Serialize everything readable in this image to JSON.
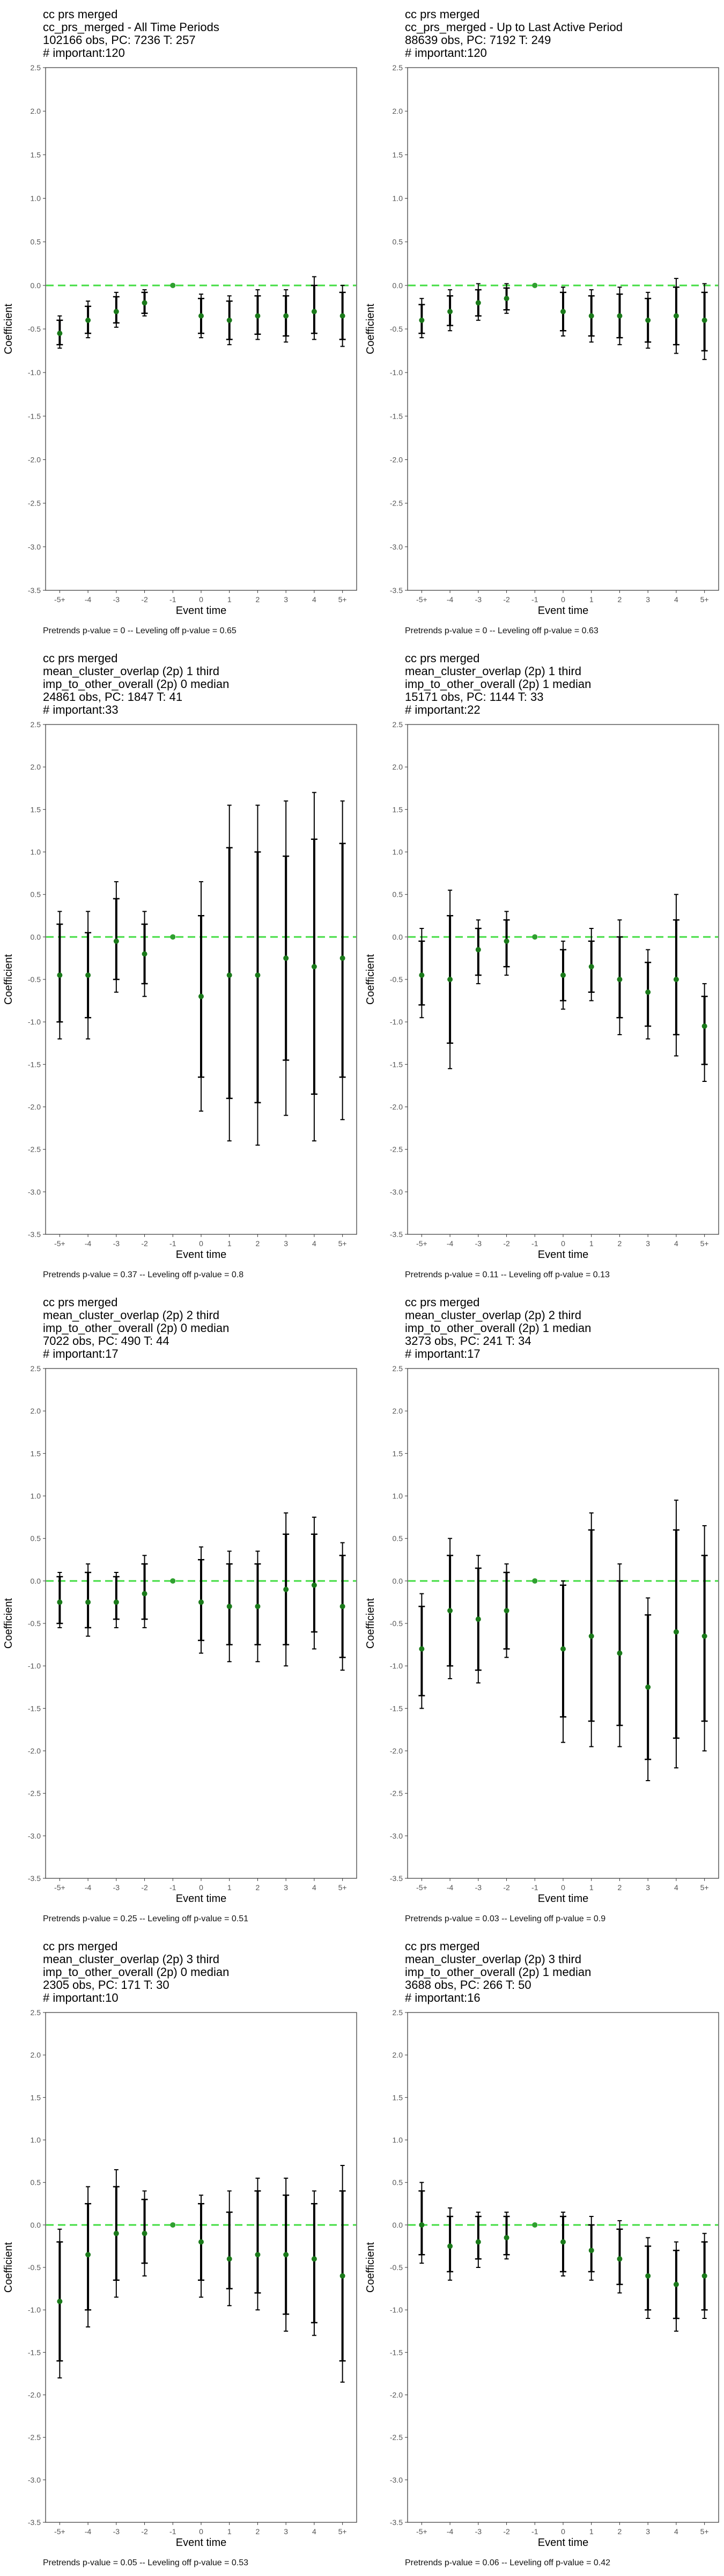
{
  "charts": [
    {
      "title_lines": [
        "cc prs merged",
        "cc_prs_merged - All Time Periods",
        "102166 obs, PC: 7236 T: 257",
        "# important:120"
      ],
      "footer": "Pretrends p-value = 0 -- Leveling off p-value = 0.65"
    },
    {
      "title_lines": [
        "cc prs merged",
        "cc_prs_merged - Up to Last Active Period",
        "88639 obs, PC: 7192 T: 249",
        "# important:120"
      ],
      "footer": "Pretrends p-value = 0 -- Leveling off p-value = 0.63"
    },
    {
      "title_lines": [
        "cc prs merged",
        "mean_cluster_overlap (2p) 1 third",
        "imp_to_other_overall (2p) 0 median",
        "24861 obs, PC: 1847 T: 41",
        "# important:33"
      ],
      "footer": "Pretrends p-value = 0.37 -- Leveling off p-value = 0.8"
    },
    {
      "title_lines": [
        "cc prs merged",
        "mean_cluster_overlap (2p) 1 third",
        "imp_to_other_overall (2p) 1 median",
        "15171 obs, PC: 1144 T: 33",
        "# important:22"
      ],
      "footer": "Pretrends p-value = 0.11 -- Leveling off p-value = 0.13"
    },
    {
      "title_lines": [
        "cc prs merged",
        "mean_cluster_overlap (2p) 2 third",
        "imp_to_other_overall (2p) 0 median",
        "7022 obs, PC: 490 T: 44",
        "# important:17"
      ],
      "footer": "Pretrends p-value = 0.25 -- Leveling off p-value = 0.51"
    },
    {
      "title_lines": [
        "cc prs merged",
        "mean_cluster_overlap (2p) 2 third",
        "imp_to_other_overall (2p) 1 median",
        "3273 obs, PC: 241 T: 34",
        "# important:17"
      ],
      "footer": "Pretrends p-value = 0.03 -- Leveling off p-value = 0.9"
    },
    {
      "title_lines": [
        "cc prs merged",
        "mean_cluster_overlap (2p) 3 third",
        "imp_to_other_overall (2p) 0 median",
        "2305 obs, PC: 171 T: 30",
        "# important:10"
      ],
      "footer": "Pretrends p-value = 0.05 -- Leveling off p-value = 0.53"
    },
    {
      "title_lines": [
        "cc prs merged",
        "mean_cluster_overlap (2p) 3 third",
        "imp_to_other_overall (2p) 1 median",
        "3688 obs, PC: 266 T: 50",
        "# important:16"
      ],
      "footer": "Pretrends p-value = 0.06 -- Leveling off p-value = 0.42"
    }
  ],
  "chart_data": [
    {
      "type": "scatter",
      "xlabel": "Event time",
      "ylabel": "Coefficient",
      "categories": [
        "-5+",
        "-4",
        "-3",
        "-2",
        "-1",
        "0",
        "1",
        "2",
        "3",
        "4",
        "5+"
      ],
      "ylim": [
        -3.5,
        2.5
      ],
      "yticks": [
        "-3.5",
        "-3.0",
        "-2.5",
        "-2.0",
        "-1.5",
        "-1.0",
        "-0.5",
        "0.0",
        "0.5",
        "1.0",
        "1.5",
        "2.0",
        "2.5"
      ],
      "reference_line": 0.0,
      "series": [
        {
          "values": [
            -0.55,
            -0.4,
            -0.3,
            -0.2,
            0.0,
            -0.35,
            -0.4,
            -0.35,
            -0.35,
            -0.3,
            -0.35
          ],
          "ci95_low": [
            -0.72,
            -0.6,
            -0.48,
            -0.35,
            0.0,
            -0.6,
            -0.68,
            -0.62,
            -0.65,
            -0.62,
            -0.7
          ],
          "ci95_high": [
            -0.35,
            -0.18,
            -0.08,
            -0.05,
            0.0,
            -0.1,
            -0.12,
            -0.05,
            -0.05,
            0.1,
            0.0
          ],
          "ci90_low": [
            -0.68,
            -0.55,
            -0.43,
            -0.32,
            0.0,
            -0.55,
            -0.62,
            -0.56,
            -0.58,
            -0.55,
            -0.62
          ],
          "ci90_high": [
            -0.4,
            -0.24,
            -0.13,
            -0.08,
            0.0,
            -0.15,
            -0.18,
            -0.12,
            -0.12,
            0.0,
            -0.08
          ]
        }
      ]
    },
    {
      "type": "scatter",
      "xlabel": "Event time",
      "ylabel": "Coefficient",
      "categories": [
        "-5+",
        "-4",
        "-3",
        "-2",
        "-1",
        "0",
        "1",
        "2",
        "3",
        "4",
        "5+"
      ],
      "ylim": [
        -3.5,
        2.5
      ],
      "yticks": [
        "-3.5",
        "-3.0",
        "-2.5",
        "-2.0",
        "-1.5",
        "-1.0",
        "-0.5",
        "0.0",
        "0.5",
        "1.0",
        "1.5",
        "2.0",
        "2.5"
      ],
      "reference_line": 0.0,
      "series": [
        {
          "values": [
            -0.4,
            -0.3,
            -0.2,
            -0.15,
            0.0,
            -0.3,
            -0.35,
            -0.35,
            -0.4,
            -0.35,
            -0.4
          ],
          "ci95_low": [
            -0.6,
            -0.52,
            -0.4,
            -0.32,
            0.0,
            -0.58,
            -0.65,
            -0.68,
            -0.72,
            -0.78,
            -0.85
          ],
          "ci95_high": [
            -0.15,
            -0.05,
            0.02,
            0.02,
            0.0,
            -0.02,
            -0.05,
            -0.02,
            -0.08,
            0.08,
            0.02
          ],
          "ci90_low": [
            -0.55,
            -0.46,
            -0.35,
            -0.28,
            0.0,
            -0.52,
            -0.58,
            -0.6,
            -0.65,
            -0.68,
            -0.75
          ],
          "ci90_high": [
            -0.22,
            -0.12,
            -0.05,
            -0.03,
            0.0,
            -0.08,
            -0.12,
            -0.1,
            -0.15,
            -0.02,
            -0.08
          ]
        }
      ]
    },
    {
      "type": "scatter",
      "xlabel": "Event time",
      "ylabel": "Coefficient",
      "categories": [
        "-5+",
        "-4",
        "-3",
        "-2",
        "-1",
        "0",
        "1",
        "2",
        "3",
        "4",
        "5+"
      ],
      "ylim": [
        -3.5,
        2.5
      ],
      "yticks": [
        "-3.5",
        "-3.0",
        "-2.5",
        "-2.0",
        "-1.5",
        "-1.0",
        "-0.5",
        "0.0",
        "0.5",
        "1.0",
        "1.5",
        "2.0",
        "2.5"
      ],
      "reference_line": 0.0,
      "series": [
        {
          "values": [
            -0.45,
            -0.45,
            -0.05,
            -0.2,
            0.0,
            -0.7,
            -0.45,
            -0.45,
            -0.25,
            -0.35,
            -0.25
          ],
          "ci95_low": [
            -1.2,
            -1.2,
            -0.65,
            -0.7,
            0.0,
            -2.05,
            -2.4,
            -2.45,
            -2.1,
            -2.4,
            -2.15
          ],
          "ci95_high": [
            0.3,
            0.3,
            0.65,
            0.3,
            0.0,
            0.65,
            1.55,
            1.55,
            1.6,
            1.7,
            1.6
          ],
          "ci90_low": [
            -1.0,
            -0.95,
            -0.5,
            -0.55,
            0.0,
            -1.65,
            -1.9,
            -1.95,
            -1.45,
            -1.85,
            -1.65
          ],
          "ci90_high": [
            0.15,
            0.05,
            0.45,
            0.15,
            0.0,
            0.25,
            1.05,
            1.0,
            0.95,
            1.15,
            1.1
          ]
        }
      ]
    },
    {
      "type": "scatter",
      "xlabel": "Event time",
      "ylabel": "Coefficient",
      "categories": [
        "-5+",
        "-4",
        "-3",
        "-2",
        "-1",
        "0",
        "1",
        "2",
        "3",
        "4",
        "5+"
      ],
      "ylim": [
        -3.5,
        2.5
      ],
      "yticks": [
        "-3.5",
        "-3.0",
        "-2.5",
        "-2.0",
        "-1.5",
        "-1.0",
        "-0.5",
        "0.0",
        "0.5",
        "1.0",
        "1.5",
        "2.0",
        "2.5"
      ],
      "reference_line": 0.0,
      "series": [
        {
          "values": [
            -0.45,
            -0.5,
            -0.15,
            -0.05,
            0.0,
            -0.45,
            -0.35,
            -0.5,
            -0.65,
            -0.5,
            -1.05
          ],
          "ci95_low": [
            -0.95,
            -1.55,
            -0.55,
            -0.45,
            0.0,
            -0.85,
            -0.75,
            -1.15,
            -1.2,
            -1.4,
            -1.7
          ],
          "ci95_high": [
            0.1,
            0.55,
            0.2,
            0.3,
            0.0,
            -0.05,
            0.1,
            0.2,
            -0.15,
            0.5,
            -0.55
          ],
          "ci90_low": [
            -0.8,
            -1.25,
            -0.45,
            -0.35,
            0.0,
            -0.75,
            -0.65,
            -0.95,
            -1.05,
            -1.15,
            -1.5
          ],
          "ci90_high": [
            -0.05,
            0.25,
            0.1,
            0.2,
            0.0,
            -0.15,
            -0.05,
            0.0,
            -0.3,
            0.2,
            -0.7
          ]
        }
      ]
    },
    {
      "type": "scatter",
      "xlabel": "Event time",
      "ylabel": "Coefficient",
      "categories": [
        "-5+",
        "-4",
        "-3",
        "-2",
        "-1",
        "0",
        "1",
        "2",
        "3",
        "4",
        "5+"
      ],
      "ylim": [
        -3.5,
        2.5
      ],
      "yticks": [
        "-3.5",
        "-3.0",
        "-2.5",
        "-2.0",
        "-1.5",
        "-1.0",
        "-0.5",
        "0.0",
        "0.5",
        "1.0",
        "1.5",
        "2.0",
        "2.5"
      ],
      "reference_line": 0.0,
      "series": [
        {
          "values": [
            -0.25,
            -0.25,
            -0.25,
            -0.15,
            0.0,
            -0.25,
            -0.3,
            -0.3,
            -0.1,
            -0.05,
            -0.3
          ],
          "ci95_low": [
            -0.55,
            -0.65,
            -0.55,
            -0.55,
            0.0,
            -0.85,
            -0.95,
            -0.95,
            -1.0,
            -0.8,
            -1.05
          ],
          "ci95_high": [
            0.1,
            0.2,
            0.1,
            0.3,
            0.0,
            0.4,
            0.35,
            0.35,
            0.8,
            0.75,
            0.45
          ],
          "ci90_low": [
            -0.5,
            -0.55,
            -0.45,
            -0.45,
            0.0,
            -0.7,
            -0.75,
            -0.75,
            -0.75,
            -0.6,
            -0.9
          ],
          "ci90_high": [
            0.05,
            0.1,
            0.05,
            0.2,
            0.0,
            0.25,
            0.2,
            0.2,
            0.55,
            0.55,
            0.3
          ]
        }
      ]
    },
    {
      "type": "scatter",
      "xlabel": "Event time",
      "ylabel": "Coefficient",
      "categories": [
        "-5+",
        "-4",
        "-3",
        "-2",
        "-1",
        "0",
        "1",
        "2",
        "3",
        "4",
        "5+"
      ],
      "ylim": [
        -3.5,
        2.5
      ],
      "yticks": [
        "-3.5",
        "-3.0",
        "-2.5",
        "-2.0",
        "-1.5",
        "-1.0",
        "-0.5",
        "0.0",
        "0.5",
        "1.0",
        "1.5",
        "2.0",
        "2.5"
      ],
      "reference_line": 0.0,
      "series": [
        {
          "values": [
            -0.8,
            -0.35,
            -0.45,
            -0.35,
            0.0,
            -0.8,
            -0.65,
            -0.85,
            -1.25,
            -0.6,
            -0.65
          ],
          "ci95_low": [
            -1.5,
            -1.15,
            -1.2,
            -0.9,
            0.0,
            -1.9,
            -1.95,
            -1.95,
            -2.35,
            -2.2,
            -2.0
          ],
          "ci95_high": [
            -0.15,
            0.5,
            0.3,
            0.2,
            0.0,
            0.0,
            0.8,
            0.2,
            -0.2,
            0.95,
            0.65
          ],
          "ci90_low": [
            -1.35,
            -1.0,
            -1.05,
            -0.8,
            0.0,
            -1.6,
            -1.65,
            -1.7,
            -2.1,
            -1.85,
            -1.65
          ],
          "ci90_high": [
            -0.3,
            0.3,
            0.15,
            0.1,
            0.0,
            -0.05,
            0.6,
            0.0,
            -0.4,
            0.6,
            0.3
          ]
        }
      ]
    },
    {
      "type": "scatter",
      "xlabel": "Event time",
      "ylabel": "Coefficient",
      "categories": [
        "-5+",
        "-4",
        "-3",
        "-2",
        "-1",
        "0",
        "1",
        "2",
        "3",
        "4",
        "5+"
      ],
      "ylim": [
        -3.5,
        2.5
      ],
      "yticks": [
        "-3.5",
        "-3.0",
        "-2.5",
        "-2.0",
        "-1.5",
        "-1.0",
        "-0.5",
        "0.0",
        "0.5",
        "1.0",
        "1.5",
        "2.0",
        "2.5"
      ],
      "reference_line": 0.0,
      "series": [
        {
          "values": [
            -0.9,
            -0.35,
            -0.1,
            -0.1,
            0.0,
            -0.2,
            -0.4,
            -0.35,
            -0.35,
            -0.4,
            -0.6
          ],
          "ci95_low": [
            -1.8,
            -1.2,
            -0.85,
            -0.6,
            0.0,
            -0.85,
            -0.95,
            -1.0,
            -1.25,
            -1.3,
            -1.85
          ],
          "ci95_high": [
            -0.05,
            0.45,
            0.65,
            0.4,
            0.0,
            0.35,
            0.4,
            0.55,
            0.55,
            0.4,
            0.7
          ],
          "ci90_low": [
            -1.6,
            -1.0,
            -0.65,
            -0.45,
            0.0,
            -0.65,
            -0.75,
            -0.8,
            -1.05,
            -1.15,
            -1.6
          ],
          "ci90_high": [
            -0.2,
            0.25,
            0.45,
            0.3,
            0.0,
            0.25,
            0.15,
            0.4,
            0.35,
            0.25,
            0.4
          ]
        }
      ]
    },
    {
      "type": "scatter",
      "xlabel": "Event time",
      "ylabel": "Coefficient",
      "categories": [
        "-5+",
        "-4",
        "-3",
        "-2",
        "-1",
        "0",
        "1",
        "2",
        "3",
        "4",
        "5+"
      ],
      "ylim": [
        -3.5,
        2.5
      ],
      "yticks": [
        "-3.5",
        "-3.0",
        "-2.5",
        "-2.0",
        "-1.5",
        "-1.0",
        "-0.5",
        "0.0",
        "0.5",
        "1.0",
        "1.5",
        "2.0",
        "2.5"
      ],
      "reference_line": 0.0,
      "series": [
        {
          "values": [
            0.0,
            -0.25,
            -0.2,
            -0.15,
            0.0,
            -0.2,
            -0.3,
            -0.4,
            -0.6,
            -0.7,
            -0.6
          ],
          "ci95_low": [
            -0.45,
            -0.65,
            -0.5,
            -0.4,
            0.0,
            -0.6,
            -0.65,
            -0.8,
            -1.1,
            -1.25,
            -1.1
          ],
          "ci95_high": [
            0.5,
            0.2,
            0.15,
            0.15,
            0.0,
            0.15,
            0.1,
            0.05,
            -0.15,
            -0.2,
            -0.1
          ],
          "ci90_low": [
            -0.35,
            -0.55,
            -0.4,
            -0.35,
            0.0,
            -0.55,
            -0.55,
            -0.7,
            -1.0,
            -1.1,
            -1.0
          ],
          "ci90_high": [
            0.4,
            0.1,
            0.1,
            0.1,
            0.0,
            0.1,
            0.0,
            -0.05,
            -0.25,
            -0.3,
            -0.2
          ]
        }
      ]
    }
  ],
  "colors": {
    "point": "#1a7a1a",
    "ref_point": "#2fa02f",
    "ci95": "#000000",
    "ci90": "#000000",
    "zero_line": "#44dd44",
    "axis": "#333333",
    "tick_text": "#555555",
    "title_text": "#000000"
  }
}
